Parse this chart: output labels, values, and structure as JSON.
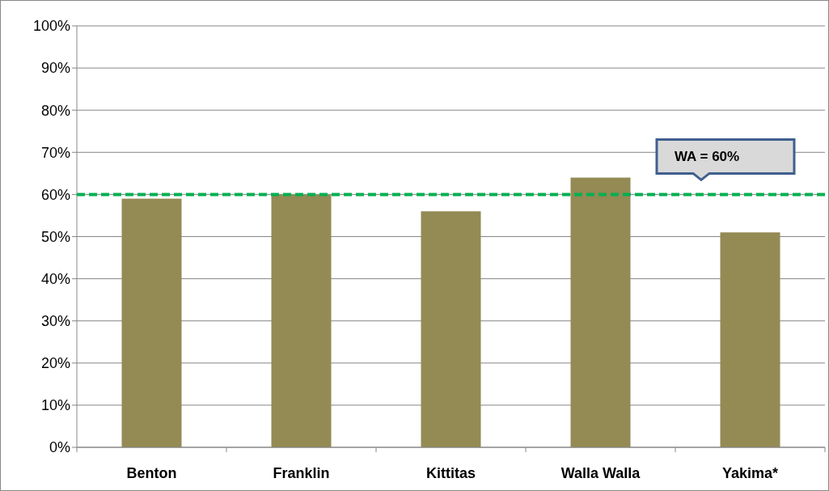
{
  "chart_data": {
    "type": "bar",
    "categories": [
      "Benton",
      "Franklin",
      "Kittitas",
      "Walla Walla",
      "Yakima*"
    ],
    "values": [
      0.59,
      0.6,
      0.56,
      0.64,
      0.51
    ],
    "color": "#948a54",
    "ylim": [
      0,
      1
    ],
    "yticks": [
      {
        "value": 0,
        "label": "0%"
      },
      {
        "value": 0.1,
        "label": "10%"
      },
      {
        "value": 0.2,
        "label": "20%"
      },
      {
        "value": 0.3,
        "label": "30%"
      },
      {
        "value": 0.4,
        "label": "40%"
      },
      {
        "value": 0.5,
        "label": "50%"
      },
      {
        "value": 0.6,
        "label": "60%"
      },
      {
        "value": 0.7,
        "label": "70%"
      },
      {
        "value": 0.8,
        "label": "80%"
      },
      {
        "value": 0.9,
        "label": "90%"
      },
      {
        "value": 1,
        "label": "100%"
      }
    ],
    "grid": "y",
    "ref_lines": [
      {
        "axis": "y",
        "value": 0.6,
        "label": "WA = 60%",
        "color": "#00b050",
        "line_style": "dashed"
      }
    ]
  }
}
